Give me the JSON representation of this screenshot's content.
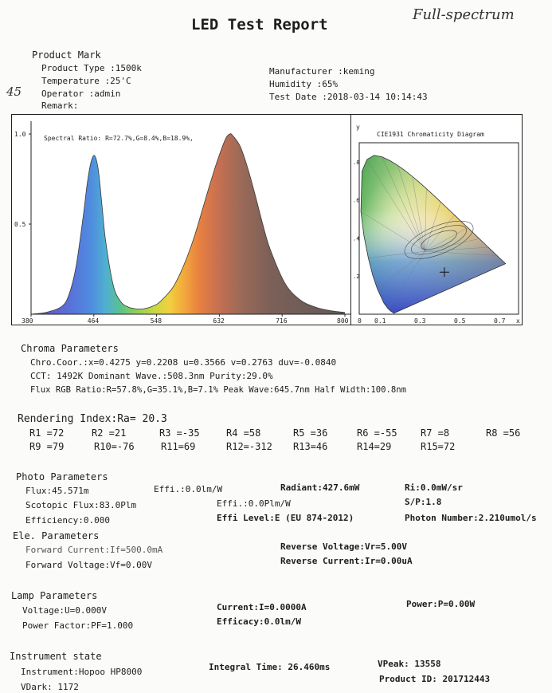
{
  "title": "LED Test Report",
  "handwritten_title": "Full-spectrum",
  "handwritten_note": "45",
  "product": {
    "heading": "Product Mark",
    "type": "Product Type :1500k",
    "temperature": "Temperature :25'C",
    "operator": "Operator :admin",
    "remark": "Remark:",
    "manufacturer": "Manufacturer :keming",
    "humidity": "Humidity :65%",
    "test_date": "Test Date :2018-03-14 10:14:43"
  },
  "chart_data": [
    {
      "type": "line",
      "title": "Spectral Ratio: R=72.7%,G=8.4%,B=18.9%,",
      "xlim": [
        380,
        800
      ],
      "ylim": [
        0,
        1.0
      ],
      "xticks": [
        "380",
        "464",
        "548",
        "632",
        "716",
        "800"
      ],
      "yticks": [
        "0.5",
        "1.0"
      ],
      "x": [
        380,
        400,
        420,
        430,
        440,
        450,
        455,
        460,
        465,
        470,
        475,
        480,
        490,
        500,
        510,
        520,
        530,
        540,
        550,
        560,
        570,
        580,
        590,
        600,
        610,
        620,
        630,
        640,
        646,
        650,
        660,
        670,
        680,
        690,
        700,
        720,
        740,
        760,
        780,
        800
      ],
      "y": [
        0,
        0.01,
        0.04,
        0.1,
        0.26,
        0.55,
        0.72,
        0.84,
        0.88,
        0.8,
        0.6,
        0.4,
        0.16,
        0.07,
        0.04,
        0.03,
        0.03,
        0.04,
        0.06,
        0.1,
        0.15,
        0.23,
        0.33,
        0.45,
        0.59,
        0.73,
        0.86,
        0.97,
        1.0,
        0.99,
        0.93,
        0.81,
        0.66,
        0.5,
        0.36,
        0.17,
        0.08,
        0.04,
        0.02,
        0.01
      ]
    },
    {
      "type": "scatter",
      "title": "CIE1931 Chromaticity Diagram",
      "ylabel": "y",
      "xlabel": "x",
      "xlim": [
        0,
        0.8
      ],
      "ylim": [
        0,
        0.9
      ],
      "xticks": [
        "0",
        "0.1",
        "0.3",
        "0.5",
        "0.7"
      ],
      "yticks": [
        ".2",
        ".4",
        ".6",
        ".8"
      ],
      "x": [
        0.4275
      ],
      "y": [
        0.2208
      ]
    }
  ],
  "chroma": {
    "heading": "Chroma Parameters",
    "line1": "Chro.Coor.:x=0.4275  y=0.2208     u=0.3566  v=0.2763     duv=-0.0840",
    "line2": "CCT: 1492K   Dominant Wave.:508.3nm   Purity:29.0%",
    "line3": "Flux RGB Ratio:R=57.8%,G=35.1%,B=7.1%   Peak Wave:645.7nm   Half Width:100.8nm"
  },
  "rendering": {
    "heading": "Rendering Index:Ra= 20.3",
    "row1": [
      "R1 =72",
      "R2 =21",
      "R3 =-35",
      "R4 =58",
      "R5 =36",
      "R6 =-55",
      "R7 =8",
      "R8 =56"
    ],
    "row2": [
      "R9 =79",
      "R10=-76",
      "R11=69",
      "R12=-312",
      "R13=46",
      "R14=29",
      "R15=72"
    ]
  },
  "photo": {
    "heading": "Photo Parameters",
    "flux": "Flux:45.571m",
    "effi1": "Effi.:0.0lm/W",
    "radiant": "Radiant:427.6mW",
    "ri": "Ri:0.0mW/sr",
    "scotopic": "Scotopic Flux:83.0Plm",
    "effi2": "Effi.:0.0Plm/W",
    "sp": "S/P:1.8",
    "efficiency": "Efficiency:0.000",
    "effi_level": "Effi Level:E (EU 874-2012)",
    "photon": "Photon Number:2.210umol/s"
  },
  "ele": {
    "heading": "Ele. Parameters",
    "forward_current": "Forward Current:If=500.0mA",
    "reverse_voltage": "Reverse Voltage:Vr=5.00V",
    "forward_voltage": "Forward Voltage:Vf=0.00V",
    "reverse_current": "Reverse Current:Ir=0.00uA"
  },
  "lamp": {
    "heading": "Lamp Parameters",
    "voltage": "Voltage:U=0.000V",
    "current": "Current:I=0.0000A",
    "power": "Power:P=0.00W",
    "power_factor": "Power Factor:PF=1.000",
    "efficacy": "Efficacy:0.0lm/W"
  },
  "instrument": {
    "heading": "Instrument state",
    "instrument": "Instrument:Hopoo HP8000",
    "integral_time": "Integral Time: 26.460ms",
    "vpeak": "VPeak: 13558",
    "vdark": "VDark: 1172",
    "product_id": "Product ID: 201712443"
  }
}
